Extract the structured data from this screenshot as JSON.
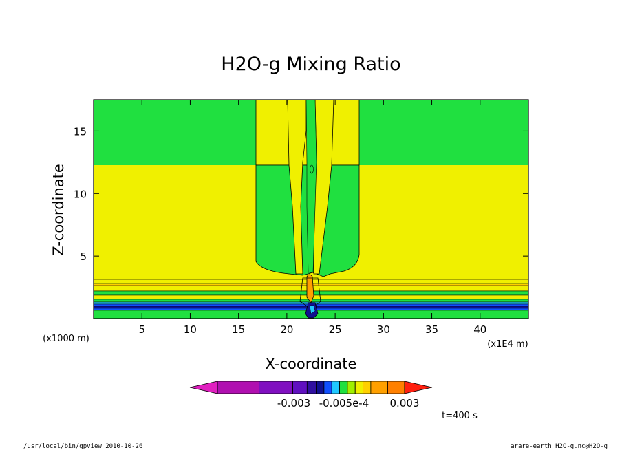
{
  "chart_data": {
    "type": "heatmap",
    "title": "H2O-g Mixing Ratio",
    "xlabel": "X-coordinate",
    "ylabel": "Z-coordinate",
    "x_unit_label": "(x1E4 m)",
    "y_unit_label": "(x1000 m)",
    "xlim": [
      0,
      45
    ],
    "ylim": [
      0,
      17.5
    ],
    "x_ticks": [
      5,
      10,
      15,
      20,
      25,
      30,
      35,
      40
    ],
    "y_ticks": [
      5,
      10,
      15
    ],
    "colorbar": {
      "tick_labels": [
        "-0.003",
        "-0.005e-4",
        "0.003"
      ],
      "colors": [
        "#e020c0",
        "#b010b0",
        "#8010c0",
        "#6010c0",
        "#3010a0",
        "#101090",
        "#1050ff",
        "#20c8ff",
        "#20e040",
        "#a0f000",
        "#f0f000",
        "#ffd000",
        "#ffa000",
        "#ff8000",
        "#ff2010"
      ]
    },
    "regions": [
      {
        "name": "background-upper",
        "color": "#20e040"
      },
      {
        "name": "middle",
        "color": "#f0f000"
      },
      {
        "name": "plume",
        "color": "#20e040"
      }
    ],
    "annotations": {
      "time": "t=400 s",
      "footer_left": "/usr/local/bin/gpview  2010-10-26",
      "footer_right": "arare-earth_H2O-g.nc@H2O-g"
    }
  },
  "colors": {
    "green": "#20e040",
    "yellow": "#f0f000",
    "orange": "#ffa000",
    "blue": "#1050ff",
    "navy": "#101090",
    "lightgreen": "#a0f000"
  }
}
